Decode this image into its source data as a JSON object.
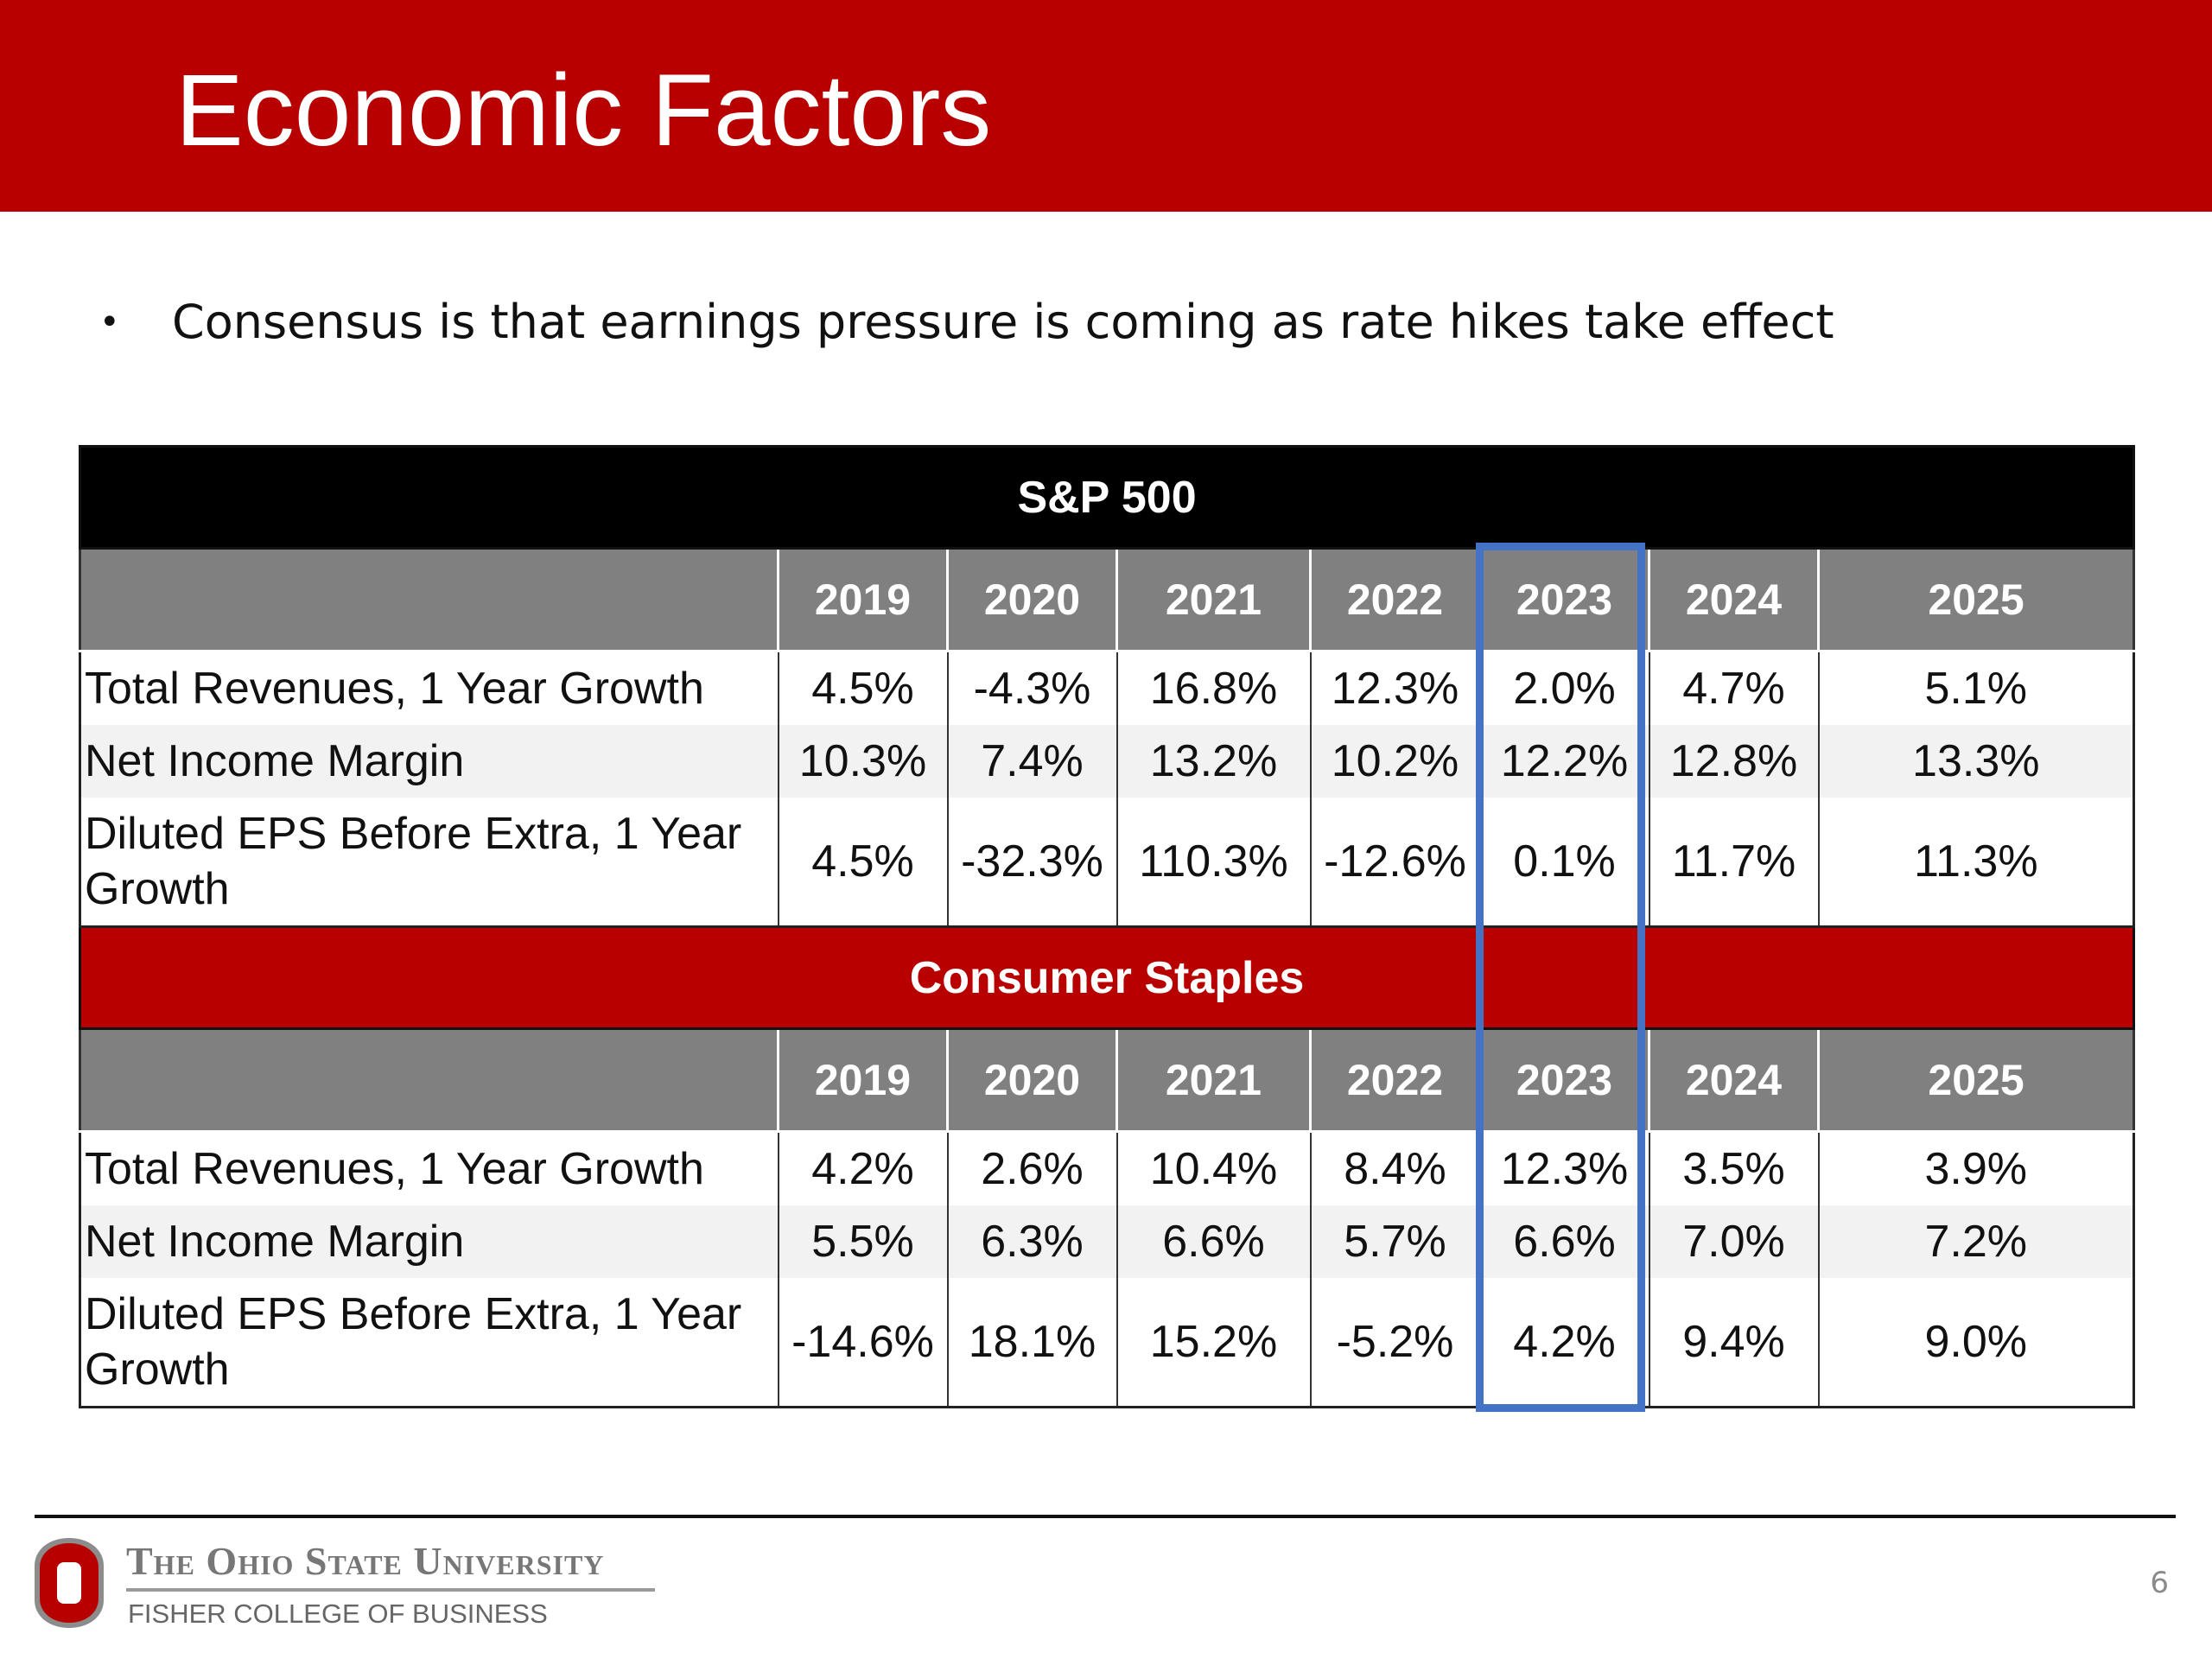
{
  "slide": {
    "title": "Economic Factors",
    "bullet": "Consensus is that earnings pressure is coming as rate hikes take effect",
    "page_number": "6"
  },
  "years": [
    "2019",
    "2020",
    "2021",
    "2022",
    "2023",
    "2024",
    "2025"
  ],
  "tables": [
    {
      "section": "S&P 500",
      "rows": [
        {
          "label": "Total Revenues, 1 Year Growth",
          "values": [
            "4.5%",
            "-4.3%",
            "16.8%",
            "12.3%",
            "2.0%",
            "4.7%",
            "5.1%"
          ]
        },
        {
          "label": "Net Income Margin",
          "values": [
            "10.3%",
            "7.4%",
            "13.2%",
            "10.2%",
            "12.2%",
            "12.8%",
            "13.3%"
          ]
        },
        {
          "label": "Diluted EPS Before Extra, 1 Year Growth",
          "values": [
            "4.5%",
            "-32.3%",
            "110.3%",
            "-12.6%",
            "0.1%",
            "11.7%",
            "11.3%"
          ]
        }
      ]
    },
    {
      "section": "Consumer Staples",
      "rows": [
        {
          "label": "Total Revenues, 1 Year Growth",
          "values": [
            "4.2%",
            "2.6%",
            "10.4%",
            "8.4%",
            "12.3%",
            "3.5%",
            "3.9%"
          ]
        },
        {
          "label": "Net Income Margin",
          "values": [
            "5.5%",
            "6.3%",
            "6.6%",
            "5.7%",
            "6.6%",
            "7.0%",
            "7.2%"
          ]
        },
        {
          "label": "Diluted EPS Before Extra, 1 Year Growth",
          "values": [
            "-14.6%",
            "18.1%",
            "15.2%",
            "-5.2%",
            "4.2%",
            "9.4%",
            "9.0%"
          ]
        }
      ]
    }
  ],
  "highlighted_year": "2023",
  "footer": {
    "university": "The Ohio State University",
    "college": "FISHER COLLEGE OF BUSINESS"
  },
  "colors": {
    "brand_red": "#b80000",
    "header_gray": "#808080",
    "highlight_blue": "#4472c4"
  }
}
